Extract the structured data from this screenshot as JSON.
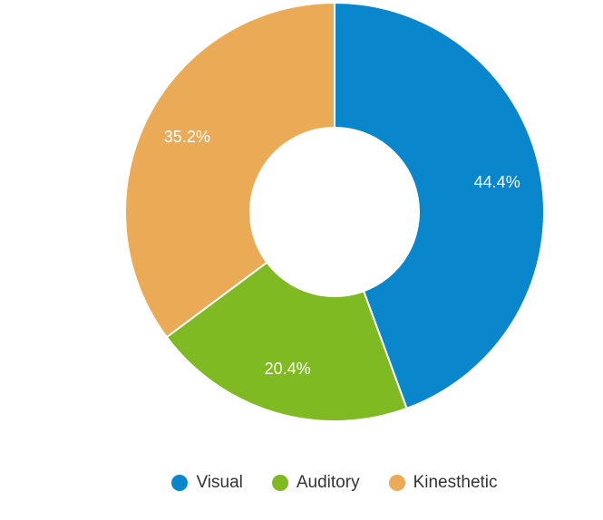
{
  "chart_data": {
    "type": "donut",
    "categories": [
      "Visual",
      "Auditory",
      "Kinesthetic"
    ],
    "values": [
      44.4,
      20.4,
      35.2
    ],
    "value_labels": [
      "44.4%",
      "20.4%",
      "35.2%"
    ],
    "colors": [
      "#0a87cc",
      "#7fba23",
      "#ebaa56"
    ]
  }
}
